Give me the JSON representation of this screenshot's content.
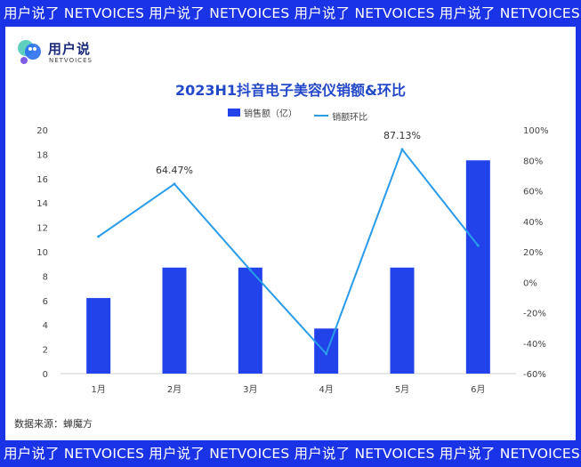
{
  "banner": {
    "top_text": "用户说了 NETVOICES 用户说了 NETVOICES 用户说了 NETVOICES 用户说了 NETVOICES",
    "bottom_text": "用户说了 NETVOICES 用户说了 NETVOICES 用户说了 NETVOICES 用户说了 NETVOICES"
  },
  "logo": {
    "name": "用户说",
    "sub": "NETVOICES"
  },
  "colors": {
    "banner": "#1b33e6",
    "bar": "#2243ea",
    "line": "#2a9bea",
    "title": "#2348c9"
  },
  "source": "数据来源：蝉魔方",
  "chart_data": {
    "type": "bar",
    "title": "2023H1抖音电子美容仪销额&环比",
    "categories": [
      "1月",
      "2月",
      "3月",
      "4月",
      "5月",
      "6月"
    ],
    "series": [
      {
        "name": "销售额（亿）",
        "type": "bar",
        "axis": "left",
        "values": [
          6.2,
          8.7,
          8.7,
          3.7,
          8.7,
          17.5
        ]
      },
      {
        "name": "销额环比",
        "type": "line",
        "axis": "right",
        "values": [
          30,
          64.47,
          8,
          -47,
          87.13,
          24
        ]
      }
    ],
    "data_labels": [
      {
        "series": 1,
        "index": 1,
        "text": "64.47%"
      },
      {
        "series": 1,
        "index": 4,
        "text": "87.13%"
      }
    ],
    "y_left": {
      "min": 0,
      "max": 20,
      "step": 2,
      "ticks": [
        "0",
        "2",
        "4",
        "6",
        "8",
        "10",
        "12",
        "14",
        "16",
        "18",
        "20"
      ]
    },
    "y_right": {
      "min": -60,
      "max": 100,
      "step": 20,
      "ticks": [
        "-60%",
        "-40%",
        "-20%",
        "0%",
        "20%",
        "40%",
        "60%",
        "80%",
        "100%"
      ]
    },
    "legend_position": "top-center",
    "grid": false
  }
}
